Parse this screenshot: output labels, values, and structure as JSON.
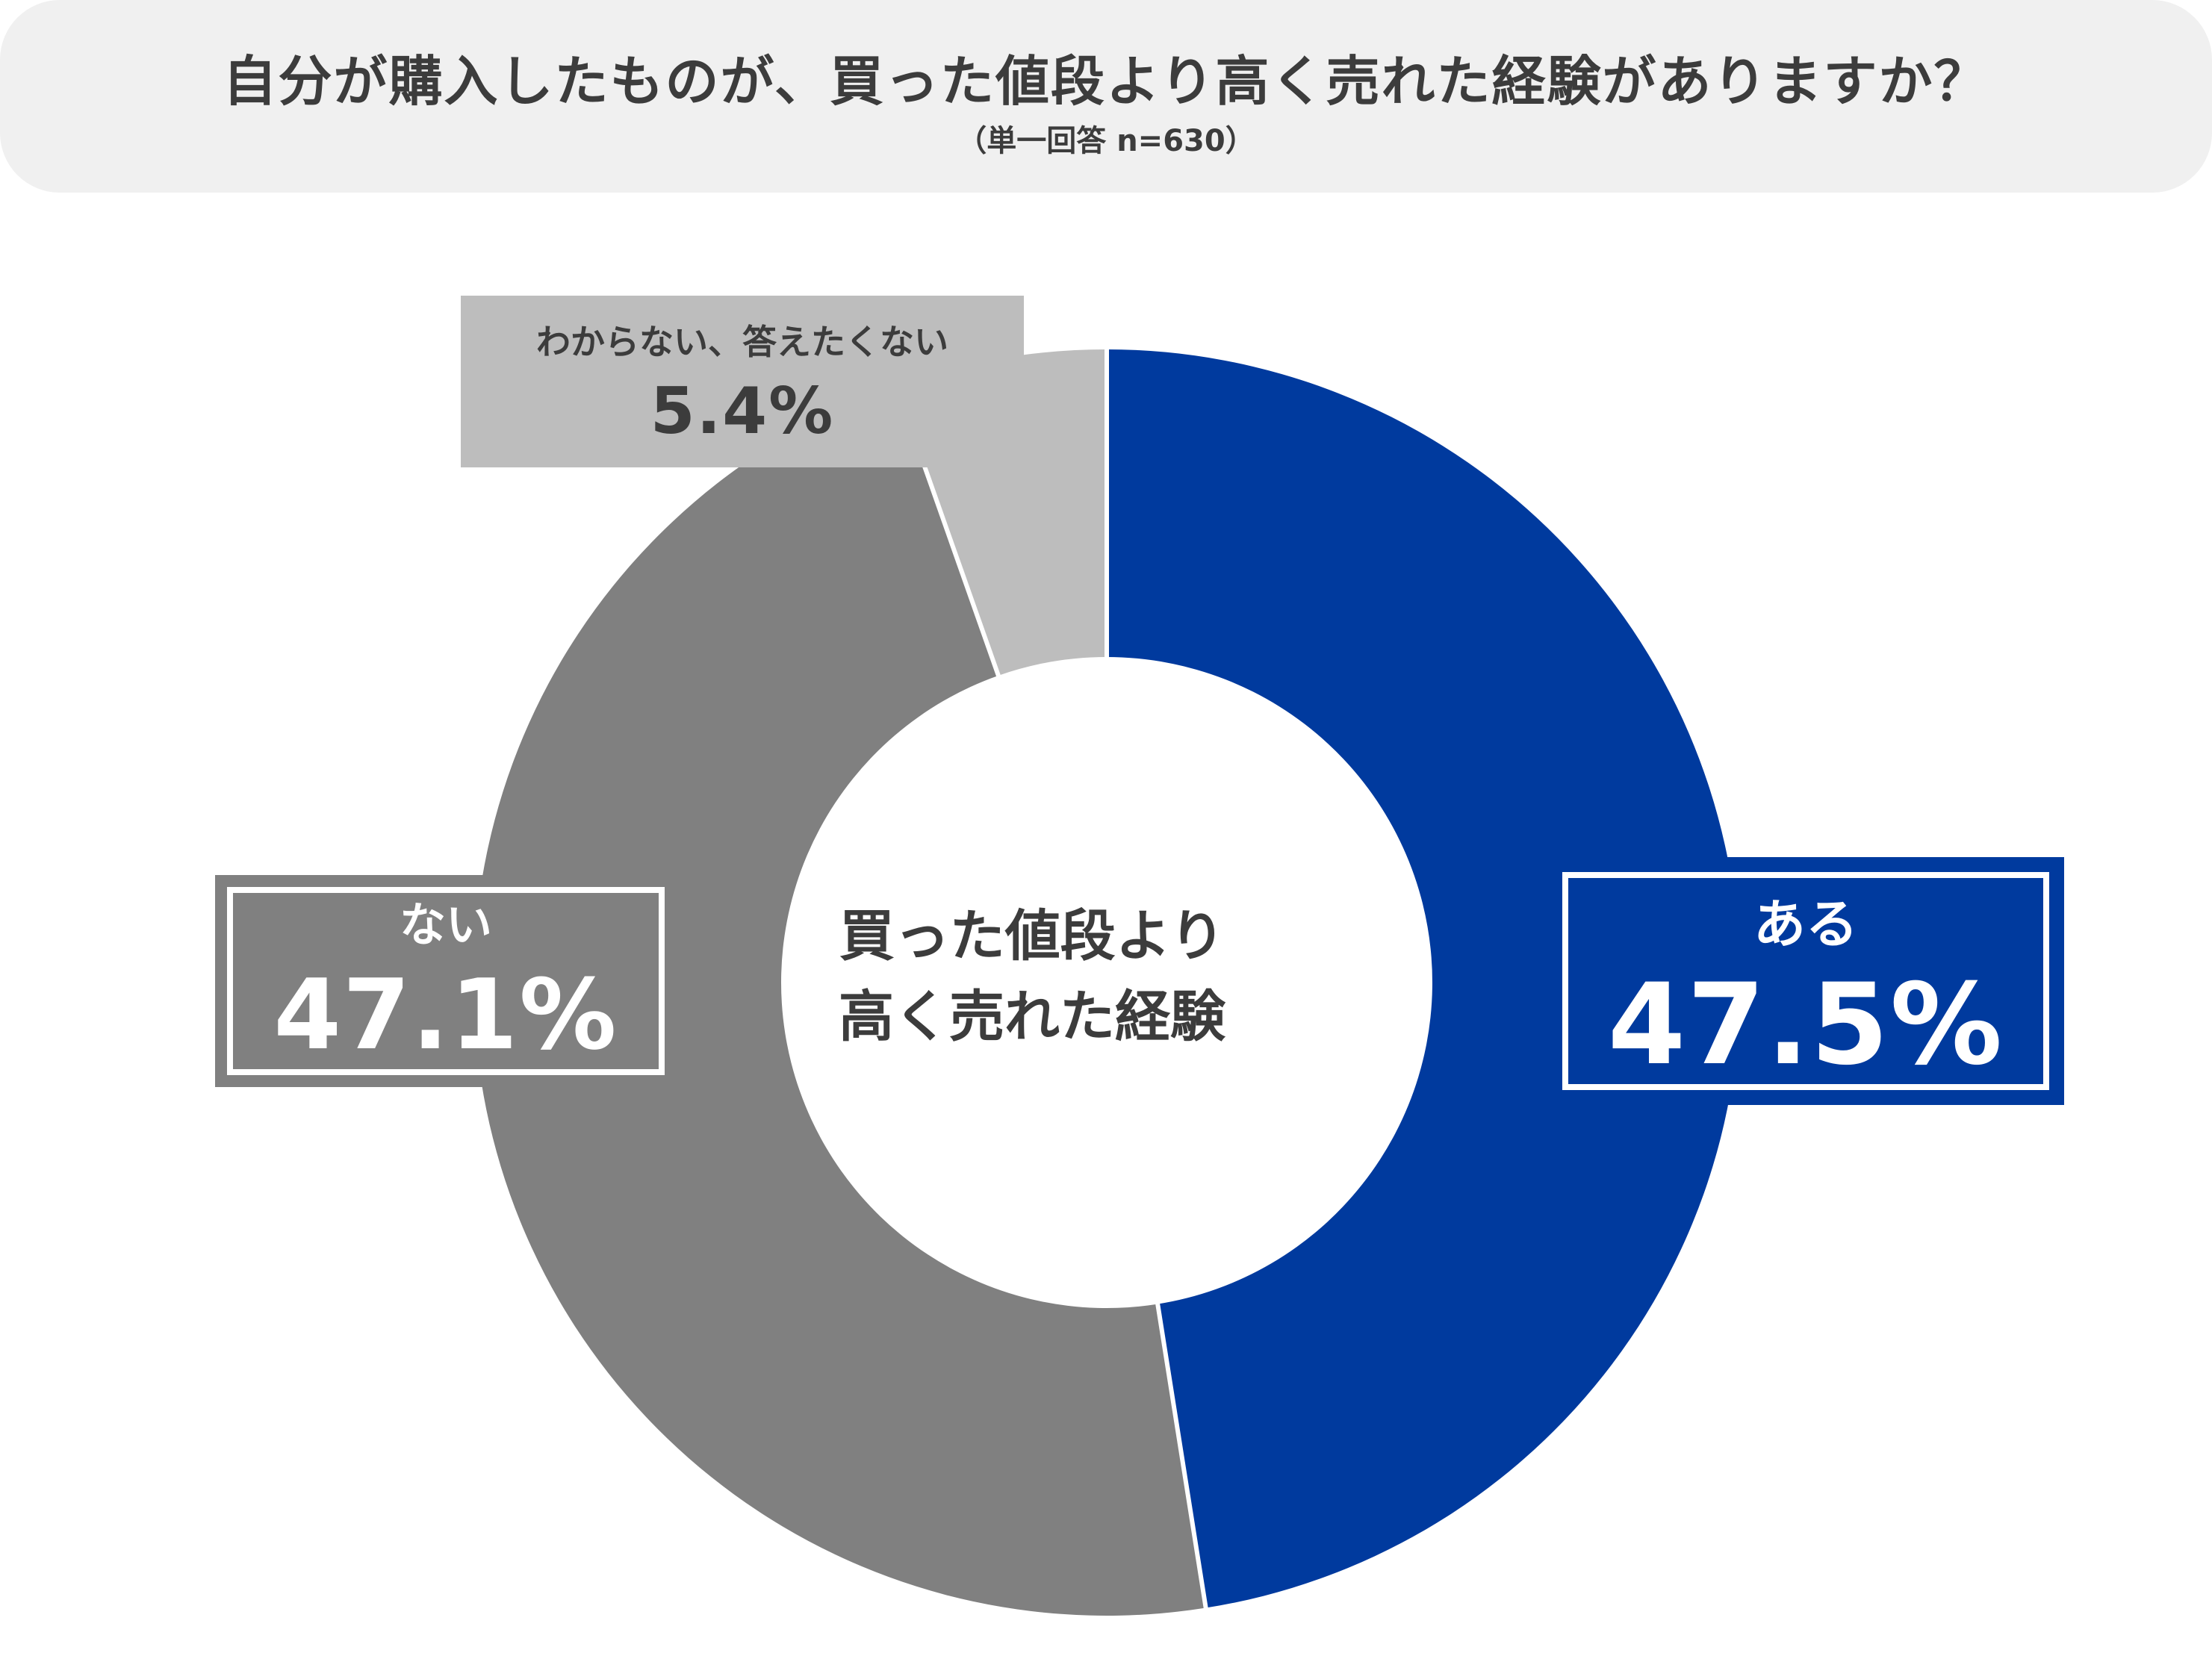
{
  "header": {
    "title": "自分が購入したものが、買った値段より高く売れた経験がありますか？",
    "subtitle": "（単一回答 n=630）"
  },
  "center": {
    "line1": "買った値段より",
    "line2": "高く売れた経験"
  },
  "chart_data": {
    "type": "pie",
    "title": "自分が購入したものが、買った値段より高く売れた経験がありますか？",
    "subtitle": "（単一回答 n=630）",
    "series": [
      {
        "name": "ある",
        "value": 47.5,
        "label": "47.5%",
        "color": "#003a9e"
      },
      {
        "name": "ない",
        "value": 47.1,
        "label": "47.1%",
        "color": "#808080"
      },
      {
        "name": "わからない、答えたくない",
        "value": 5.4,
        "label": "5.4%",
        "color": "#bdbdbd"
      }
    ],
    "donut": true,
    "start": "12 o'clock",
    "direction": "clockwise"
  },
  "colors": {
    "separator": "#ffffff",
    "text_dark": "#3c3c3c",
    "header_bg": "#f0f0f0"
  }
}
